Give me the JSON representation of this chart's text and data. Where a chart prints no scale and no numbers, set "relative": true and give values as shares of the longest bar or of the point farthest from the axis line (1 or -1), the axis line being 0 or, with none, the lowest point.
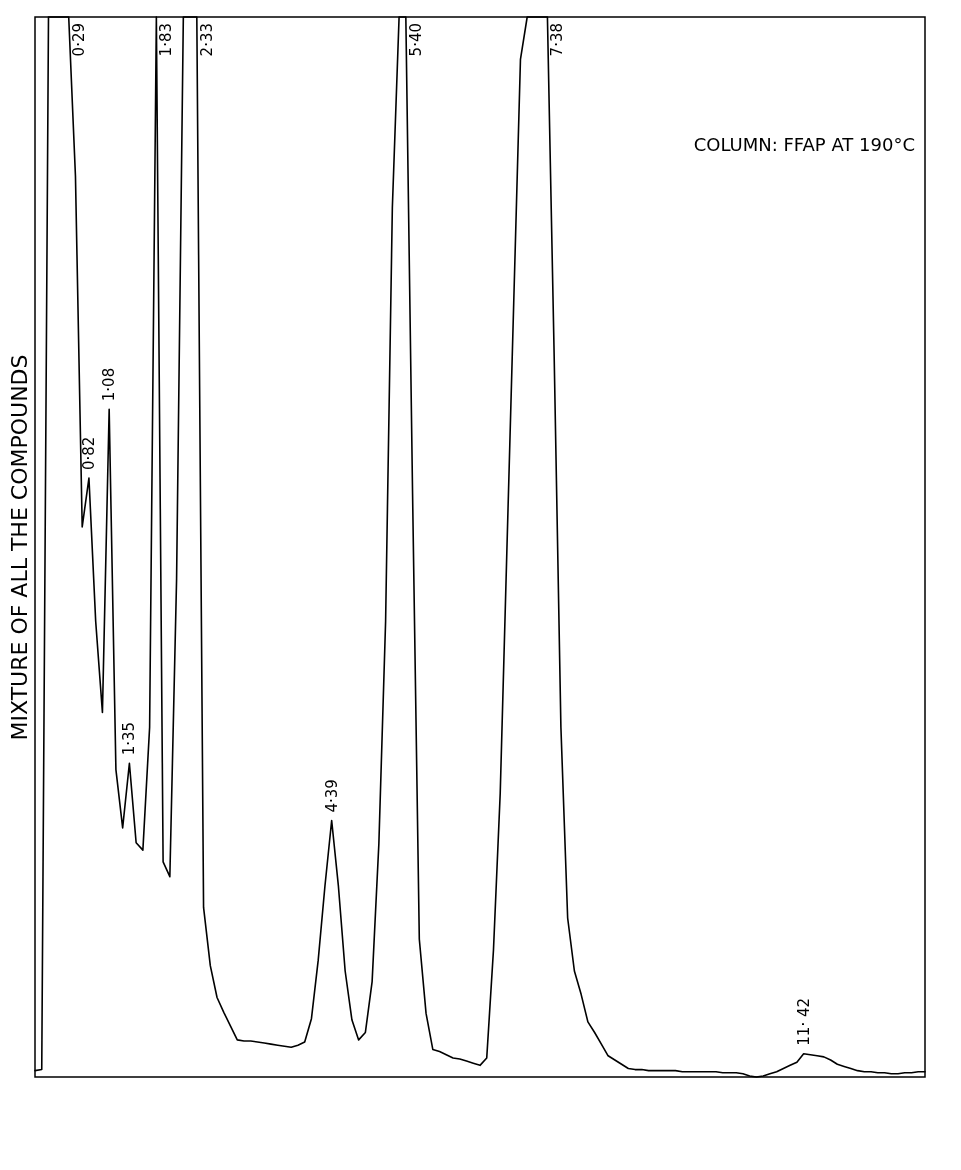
{
  "chart_data": {
    "type": "line",
    "relative": true,
    "ylabel": "MIXTURE OF ALL THE COMPOUNDS",
    "grid": false,
    "categories": [
      null,
      null,
      null,
      null,
      null,
      null,
      null,
      null,
      null,
      null,
      null,
      null,
      null,
      null,
      null,
      null,
      null,
      null,
      null,
      null,
      null,
      null,
      null,
      null,
      null,
      null,
      null,
      null,
      null,
      null,
      null,
      null,
      null,
      null,
      null,
      null,
      null,
      null,
      null,
      null,
      null,
      null,
      null,
      null,
      null,
      null,
      null,
      null,
      null,
      null,
      null,
      null,
      null,
      null,
      null,
      null,
      null,
      null,
      null,
      null,
      null,
      null,
      null,
      null,
      null,
      null,
      null,
      null,
      null,
      null,
      null,
      null,
      null,
      null,
      null,
      null,
      null,
      null,
      null,
      null,
      null,
      null,
      null,
      null,
      null,
      null,
      null,
      null,
      null,
      null,
      null,
      null,
      null,
      null,
      null,
      null,
      null,
      null,
      null,
      null,
      null,
      null,
      null,
      null,
      null,
      null,
      null,
      null,
      null,
      null,
      null,
      null,
      null,
      null,
      null,
      null,
      null,
      null,
      null,
      null,
      null,
      null,
      null,
      null,
      null,
      null,
      null,
      null,
      null,
      null,
      null,
      null,
      null
    ],
    "series": [
      {
        "color": "#000000",
        "values": [
          0.006,
          0.007,
          1,
          1,
          1,
          1,
          0.85,
          0.519,
          0.565,
          0.43,
          0.344,
          0.63,
          0.29,
          0.235,
          0.296,
          0.221,
          0.214,
          0.33,
          1,
          0.203,
          0.189,
          0.47,
          1,
          1,
          1,
          0.16,
          0.105,
          0.075,
          0.061,
          0.048,
          0.035,
          0.034,
          0.034,
          0.033,
          0.032,
          0.031,
          0.03,
          0.029,
          0.028,
          0.03,
          0.033,
          0.055,
          0.11,
          0.18,
          0.242,
          0.18,
          0.1,
          0.054,
          0.035,
          0.042,
          0.09,
          0.22,
          0.43,
          0.82,
          1,
          1,
          0.55,
          0.13,
          0.06,
          0.026,
          0.024,
          0.021,
          0.018,
          0.017,
          0.015,
          0.013,
          0.011,
          0.018,
          0.12,
          0.268,
          0.5,
          0.73,
          0.96,
          1,
          1,
          1,
          1,
          0.68,
          0.33,
          0.15,
          0.1,
          0.078,
          0.052,
          0.042,
          0.031,
          0.02,
          0.016,
          0.012,
          0.008,
          0.007,
          0.007,
          0.006,
          0.006,
          0.006,
          0.006,
          0.006,
          0.005,
          0.005,
          0.005,
          0.005,
          0.005,
          0.005,
          0.004,
          0.004,
          0.004,
          0.003,
          0.001,
          0,
          0.001,
          0.003,
          0.005,
          0.008,
          0.011,
          0.014,
          0.022,
          0.021,
          0.02,
          0.019,
          0.016,
          0.012,
          0.01,
          0.008,
          0.006,
          0.005,
          0.005,
          0.004,
          0.004,
          0.003,
          0.003,
          0.004,
          0.004,
          0.005,
          0.005
        ]
      }
    ],
    "annotations": [
      "0·29",
      "0·82",
      "1·08",
      "1·35",
      "1·83",
      "2·33",
      "4·39",
      "5·40",
      "7·38",
      "11· 42",
      "COLUMN: FFAP AT 190°C"
    ]
  }
}
